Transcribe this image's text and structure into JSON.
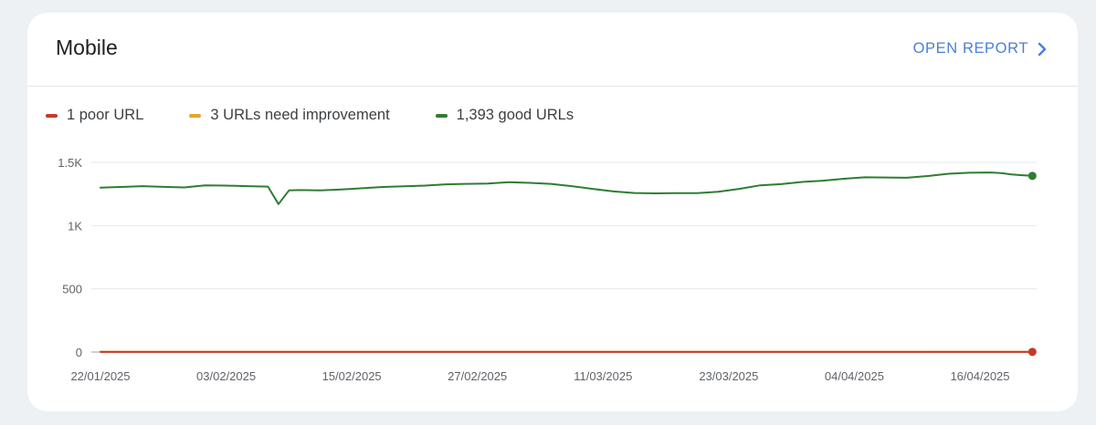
{
  "card": {
    "title": "Mobile",
    "open_report_label": "OPEN REPORT"
  },
  "legend": [
    {
      "label": "1 poor URL",
      "color": "#c5392a"
    },
    {
      "label": "3 URLs need improvement",
      "color": "#e8a32e"
    },
    {
      "label": "1,393 good URLs",
      "color": "#2e7d32"
    }
  ],
  "colors": {
    "link": "#4b7fd6",
    "grid": "#e6e8eb"
  },
  "chart_data": {
    "type": "line",
    "x_start": "22/01/2025",
    "x_end": "21/04/2025",
    "xticks": [
      "22/01/2025",
      "03/02/2025",
      "15/02/2025",
      "27/02/2025",
      "11/03/2025",
      "23/03/2025",
      "04/04/2025",
      "16/04/2025"
    ],
    "yticks": [
      {
        "value": 0,
        "label": "0"
      },
      {
        "value": 500,
        "label": "500"
      },
      {
        "value": 1000,
        "label": "1K"
      },
      {
        "value": 1500,
        "label": "1.5K"
      }
    ],
    "ylim": [
      0,
      1500
    ],
    "grid": true,
    "series": [
      {
        "name": "1 poor URL",
        "color": "#c5392a",
        "x": [
          "22/01/2025",
          "21/04/2025"
        ],
        "values": [
          1,
          1
        ],
        "end_marker": true
      },
      {
        "name": "3 URLs need improvement",
        "color": "#e8a32e",
        "x": [
          "22/01/2025",
          "21/04/2025"
        ],
        "values": [
          3,
          3
        ],
        "end_marker": false
      },
      {
        "name": "1,393 good URLs",
        "color": "#2e7d32",
        "end_marker": true,
        "x": [
          "22/01/2025",
          "24/01/2025",
          "26/01/2025",
          "28/01/2025",
          "30/01/2025",
          "01/02/2025",
          "03/02/2025",
          "05/02/2025",
          "07/02/2025",
          "08/02/2025",
          "09/02/2025",
          "10/02/2025",
          "12/02/2025",
          "14/02/2025",
          "16/02/2025",
          "18/02/2025",
          "20/02/2025",
          "22/02/2025",
          "24/02/2025",
          "26/02/2025",
          "28/02/2025",
          "02/03/2025",
          "04/03/2025",
          "06/03/2025",
          "08/03/2025",
          "10/03/2025",
          "12/03/2025",
          "14/03/2025",
          "16/03/2025",
          "18/03/2025",
          "20/03/2025",
          "22/03/2025",
          "24/03/2025",
          "26/03/2025",
          "28/03/2025",
          "30/03/2025",
          "01/04/2025",
          "03/04/2025",
          "05/04/2025",
          "07/04/2025",
          "09/04/2025",
          "11/04/2025",
          "13/04/2025",
          "15/04/2025",
          "17/04/2025",
          "18/04/2025",
          "19/04/2025",
          "20/04/2025",
          "21/04/2025"
        ],
        "values": [
          1300,
          1305,
          1312,
          1306,
          1302,
          1318,
          1316,
          1312,
          1308,
          1170,
          1278,
          1281,
          1278,
          1285,
          1295,
          1305,
          1311,
          1316,
          1326,
          1330,
          1333,
          1343,
          1338,
          1330,
          1312,
          1290,
          1270,
          1258,
          1255,
          1256,
          1257,
          1268,
          1290,
          1318,
          1328,
          1345,
          1355,
          1370,
          1382,
          1380,
          1378,
          1392,
          1410,
          1418,
          1420,
          1415,
          1405,
          1398,
          1393
        ]
      }
    ]
  }
}
